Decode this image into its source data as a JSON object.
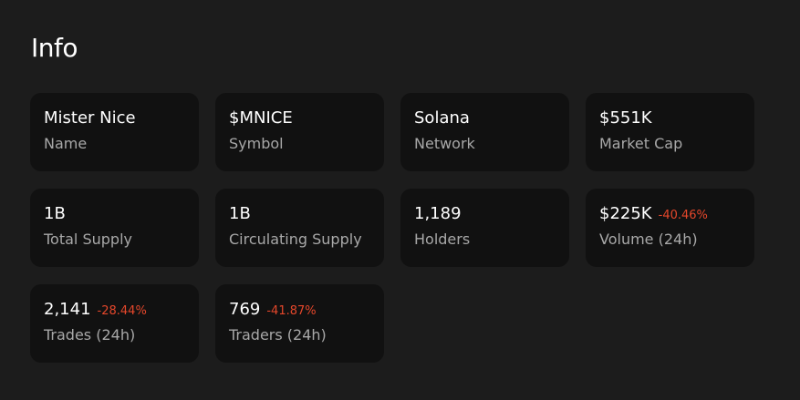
{
  "section_title": "Info",
  "colors": {
    "background": "#1c1c1c",
    "card": "#111111",
    "negative": "#e5472b"
  },
  "cards": [
    {
      "value": "Mister Nice",
      "label": "Name",
      "change": null
    },
    {
      "value": "$MNICE",
      "label": "Symbol",
      "change": null
    },
    {
      "value": "Solana",
      "label": "Network",
      "change": null
    },
    {
      "value": "$551K",
      "label": "Market Cap",
      "change": null
    },
    {
      "value": "1B",
      "label": "Total Supply",
      "change": null
    },
    {
      "value": "1B",
      "label": "Circulating Supply",
      "change": null
    },
    {
      "value": "1,189",
      "label": "Holders",
      "change": null
    },
    {
      "value": "$225K",
      "label": "Volume (24h)",
      "change": "-40.46%"
    },
    {
      "value": "2,141",
      "label": "Trades (24h)",
      "change": "-28.44%"
    },
    {
      "value": "769",
      "label": "Traders (24h)",
      "change": "-41.87%"
    }
  ]
}
